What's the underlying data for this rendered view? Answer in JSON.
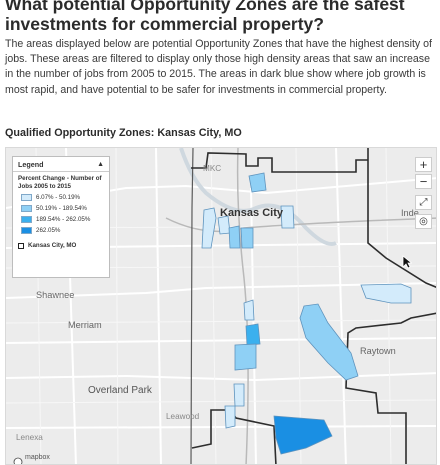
{
  "header": {
    "title": "What potential Opportunity Zones are the safest investments for commercial property?",
    "description": "The areas displayed below are potential Opportunity Zones that have the highest density of jobs. These areas are filtered to display only those high density areas that saw an increase in the number of jobs from 2005 to 2015. The areas in dark blue show where job growth is most rapid, and have potential to be safer for investments in commercial property."
  },
  "map": {
    "title": "Qualified Opportunity Zones: Kansas City, MO",
    "legend": {
      "heading": "Legend",
      "collapse_icon": "triangle-up-icon",
      "subtitle": "Percent Change - Number of Jobs 2005 to 2015",
      "items": [
        {
          "label": "6.07% - 50.19%",
          "color": "#d3ebfb"
        },
        {
          "label": "50.19% - 189.54%",
          "color": "#8fd0f5"
        },
        {
          "label": "189.54% - 262.05%",
          "color": "#3bb0ee"
        },
        {
          "label": "262.05%",
          "color": "#1a8fe3"
        }
      ],
      "boundary_label": "Kansas City, MO"
    },
    "controls": {
      "zoom_in": "+",
      "zoom_out": "−",
      "fullscreen": "⤢",
      "locate": "◎"
    },
    "labels": {
      "mkc": "MKC",
      "kansas_city": "Kansas City",
      "independence": "Inde",
      "shawnee": "Shawnee",
      "merriam": "Merriam",
      "overland_park": "Overland Park",
      "leawood": "Leawood",
      "raytown": "Raytown",
      "lenexa": "Lenexa",
      "attribution": "mapbox"
    }
  }
}
